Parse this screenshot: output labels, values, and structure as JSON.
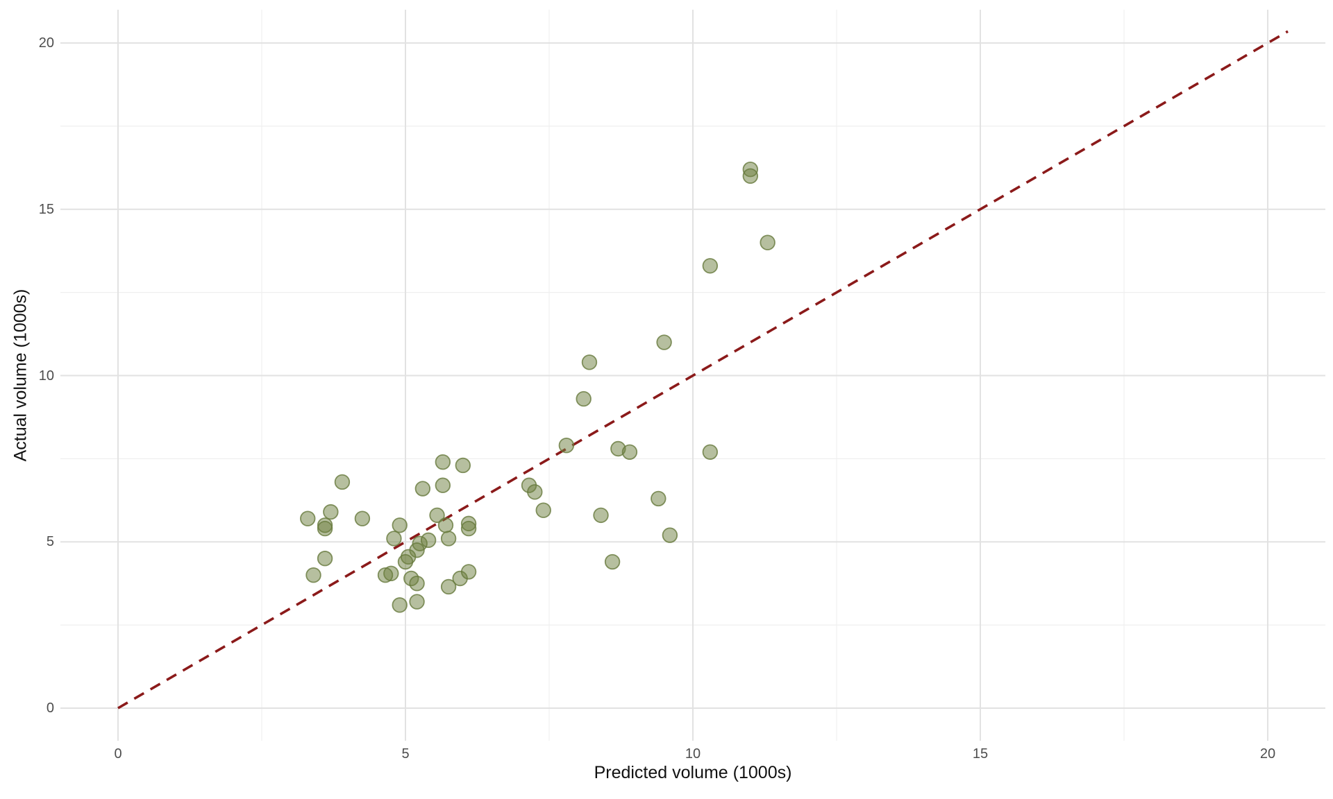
{
  "figure": {
    "background_color": "#ffffff"
  },
  "chart_data": {
    "type": "scatter",
    "title": "",
    "xlabel": "Predicted volume (1000s)",
    "ylabel": "Actual volume (1000s)",
    "xlim": [
      0,
      20
    ],
    "ylim": [
      0,
      20
    ],
    "x_ticks": [
      0,
      5,
      10,
      15,
      20
    ],
    "y_ticks": [
      0,
      5,
      10,
      15,
      20
    ],
    "x_minor_ticks": [
      2.5,
      7.5,
      12.5,
      17.5
    ],
    "y_minor_ticks": [
      2.5,
      7.5,
      12.5,
      17.5
    ],
    "grid": "on",
    "legend": "none",
    "points": [
      [
        11.0,
        16.2
      ],
      [
        11.0,
        16.0
      ],
      [
        11.3,
        14.0
      ],
      [
        10.3,
        13.3
      ],
      [
        9.5,
        11.0
      ],
      [
        8.2,
        10.4
      ],
      [
        8.1,
        9.3
      ],
      [
        7.8,
        7.9
      ],
      [
        8.7,
        7.8
      ],
      [
        8.9,
        7.7
      ],
      [
        10.3,
        7.7
      ],
      [
        9.4,
        6.3
      ],
      [
        8.4,
        5.8
      ],
      [
        9.6,
        5.2
      ],
      [
        8.6,
        4.4
      ],
      [
        7.15,
        6.7
      ],
      [
        7.25,
        6.5
      ],
      [
        7.4,
        5.95
      ],
      [
        5.65,
        7.4
      ],
      [
        6.0,
        7.3
      ],
      [
        5.3,
        6.6
      ],
      [
        5.65,
        6.7
      ],
      [
        3.9,
        6.8
      ],
      [
        3.3,
        5.7
      ],
      [
        3.7,
        5.9
      ],
      [
        3.6,
        5.5
      ],
      [
        3.6,
        5.4
      ],
      [
        4.25,
        5.7
      ],
      [
        4.9,
        5.5
      ],
      [
        4.8,
        5.1
      ],
      [
        5.55,
        5.8
      ],
      [
        5.7,
        5.5
      ],
      [
        5.75,
        5.1
      ],
      [
        6.1,
        5.55
      ],
      [
        6.1,
        5.4
      ],
      [
        5.25,
        4.95
      ],
      [
        5.4,
        5.05
      ],
      [
        5.2,
        4.75
      ],
      [
        5.05,
        4.55
      ],
      [
        5.0,
        4.4
      ],
      [
        4.75,
        4.05
      ],
      [
        4.65,
        4.0
      ],
      [
        5.1,
        3.9
      ],
      [
        5.2,
        3.75
      ],
      [
        3.6,
        4.5
      ],
      [
        3.4,
        4.0
      ],
      [
        4.9,
        3.1
      ],
      [
        5.2,
        3.2
      ],
      [
        5.75,
        3.65
      ],
      [
        5.95,
        3.9
      ],
      [
        6.1,
        4.1
      ]
    ],
    "identity_line": {
      "from": [
        0,
        0
      ],
      "to": [
        20.35,
        20.35
      ],
      "style": "dashed",
      "color": "#8B1A1A",
      "meaning": "y = x reference line"
    },
    "point_style": {
      "fill": "#6D8040",
      "fill_opacity": 0.5,
      "stroke": "#67793C",
      "stroke_opacity": 0.8,
      "radius": 10.3
    },
    "grid_style": {
      "major_color": "#E2E2E2",
      "minor_color": "#EFEFEF"
    },
    "tick_label_color": "#4d4d4d",
    "axis_title_color": "#111111"
  }
}
